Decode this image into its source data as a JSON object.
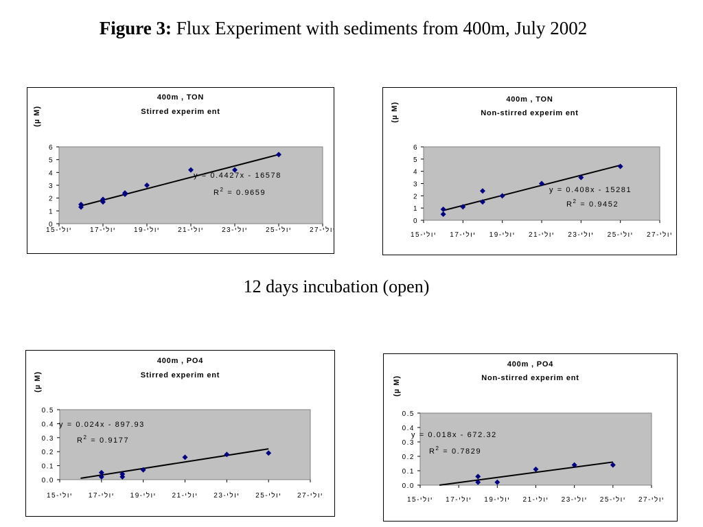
{
  "slide": {
    "title_bold": "Figure 3:",
    "title_rest": " Flux Experiment with sediments from 400m, July 2002",
    "caption": "12 days incubation (open)"
  },
  "colors": {
    "plot_bg": "#c0c0c0",
    "marker": "#000080",
    "trend": "#000000"
  },
  "chart_data": [
    {
      "type": "scatter",
      "title": "400m , TON",
      "subtitle": "Stirred experim ent",
      "ylabel": "(µ M)",
      "ylim": [
        0,
        6
      ],
      "yticks": [
        "0",
        "1",
        "2",
        "3",
        "4",
        "5",
        "6"
      ],
      "xlim": [
        15,
        27
      ],
      "xticks": [
        15,
        17,
        19,
        21,
        23,
        25,
        27
      ],
      "xtick_labels": [
        "15-יולי",
        "17-יולי",
        "19-יולי",
        "21-יולי",
        "23-יולי",
        "25-יולי",
        "27-יולי"
      ],
      "points": [
        [
          16,
          1.3
        ],
        [
          16,
          1.5
        ],
        [
          17,
          1.7
        ],
        [
          17,
          1.9
        ],
        [
          18,
          2.3
        ],
        [
          18,
          2.4
        ],
        [
          19,
          3.0
        ],
        [
          21,
          4.2
        ],
        [
          23,
          4.2
        ],
        [
          25,
          5.4
        ]
      ],
      "trendline": {
        "x": [
          16,
          25
        ],
        "y": [
          1.4,
          5.4
        ]
      },
      "equation": "y = 0.4427x - 16578",
      "r2_prefix": "R",
      "r2_exp": "2",
      "r2_value": " = 0.9659"
    },
    {
      "type": "scatter",
      "title": "400m , TON",
      "subtitle": "Non-stirred experim ent",
      "ylabel": "(µ M)",
      "ylim": [
        0,
        6
      ],
      "yticks": [
        "0",
        "1",
        "2",
        "3",
        "4",
        "5",
        "6"
      ],
      "xlim": [
        15,
        27
      ],
      "xticks": [
        15,
        17,
        19,
        21,
        23,
        25,
        27
      ],
      "xtick_labels": [
        "15-יולי",
        "17-יולי",
        "19-יולי",
        "21-יולי",
        "23-יולי",
        "25-יולי",
        "27-יולי"
      ],
      "points": [
        [
          16,
          0.5
        ],
        [
          16,
          0.9
        ],
        [
          17,
          1.1
        ],
        [
          18,
          1.5
        ],
        [
          18,
          2.4
        ],
        [
          19,
          2.0
        ],
        [
          21,
          3.0
        ],
        [
          23,
          3.5
        ],
        [
          25,
          4.4
        ]
      ],
      "trendline": {
        "x": [
          16,
          25
        ],
        "y": [
          0.8,
          4.5
        ]
      },
      "equation": "y = 0.408x - 15281",
      "r2_prefix": "R",
      "r2_exp": "2",
      "r2_value": " = 0.9452"
    },
    {
      "type": "scatter",
      "title": "400m , PO4",
      "subtitle": "Stirred experim ent",
      "ylabel": "(µ M)",
      "ylim": [
        0,
        0.5
      ],
      "yticks": [
        "0.0",
        "0.1",
        "0.2",
        "0.3",
        "0.4",
        "0.5"
      ],
      "xlim": [
        15,
        27
      ],
      "xticks": [
        15,
        17,
        19,
        21,
        23,
        25,
        27
      ],
      "xtick_labels": [
        "15-יולי",
        "17-יולי",
        "19-יולי",
        "21-יולי",
        "23-יולי",
        "25-יולי",
        "27-יולי"
      ],
      "points": [
        [
          17,
          0.02
        ],
        [
          17,
          0.05
        ],
        [
          18,
          0.02
        ],
        [
          18,
          0.04
        ],
        [
          19,
          0.07
        ],
        [
          21,
          0.16
        ],
        [
          23,
          0.18
        ],
        [
          25,
          0.19
        ]
      ],
      "trendline": {
        "x": [
          16,
          25
        ],
        "y": [
          0.01,
          0.22
        ]
      },
      "equation": "y = 0.024x - 897.93",
      "r2_prefix": "R",
      "r2_exp": "2",
      "r2_value": " = 0.9177"
    },
    {
      "type": "scatter",
      "title": "400m , PO4",
      "subtitle": "Non-stirred experim ent",
      "ylabel": "(µ M)",
      "ylim": [
        0,
        0.5
      ],
      "yticks": [
        "0.0",
        "0.1",
        "0.2",
        "0.3",
        "0.4",
        "0.5"
      ],
      "xlim": [
        15,
        27
      ],
      "xticks": [
        15,
        17,
        19,
        21,
        23,
        25,
        27
      ],
      "xtick_labels": [
        "15-יולי",
        "17-יולי",
        "19-יולי",
        "21-יולי",
        "23-יולי",
        "25-יולי",
        "27-יולי"
      ],
      "points": [
        [
          18,
          0.02
        ],
        [
          18,
          0.06
        ],
        [
          19,
          0.02
        ],
        [
          21,
          0.11
        ],
        [
          23,
          0.14
        ],
        [
          25,
          0.14
        ]
      ],
      "trendline": {
        "x": [
          16,
          25
        ],
        "y": [
          0.0,
          0.16
        ]
      },
      "equation": "y = 0.018x - 672.32",
      "r2_prefix": "R",
      "r2_exp": "2",
      "r2_value": " = 0.7829"
    }
  ]
}
